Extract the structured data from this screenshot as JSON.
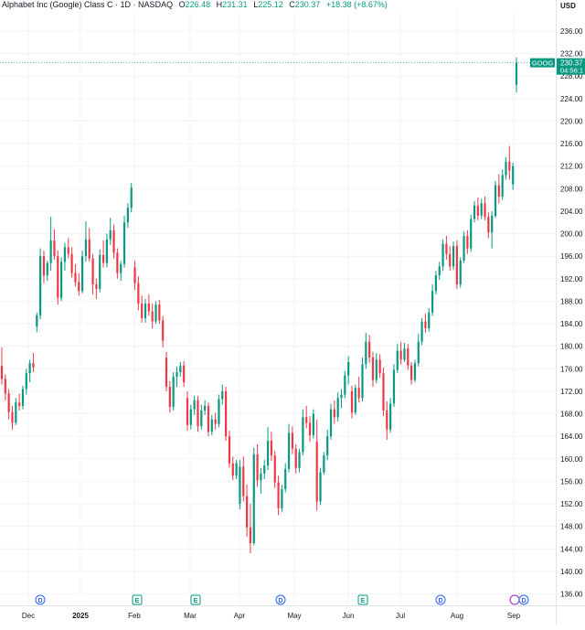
{
  "header": {
    "title": "Alphabet Inc (Google) Class C · 1D · NASDAQ",
    "o_label": "O",
    "o_value": "226.48",
    "h_label": "H",
    "h_value": "231.31",
    "l_label": "L",
    "l_value": "225.12",
    "c_label": "C",
    "c_value": "230.37",
    "change": "+18.38 (+8.67%)"
  },
  "price_axis": {
    "currency": "USD",
    "ticks": [
      "236.00",
      "232.00",
      "228.00",
      "224.00",
      "220.00",
      "216.00",
      "212.00",
      "208.00",
      "204.00",
      "200.00",
      "196.00",
      "192.00",
      "188.00",
      "184.00",
      "180.00",
      "176.00",
      "172.00",
      "168.00",
      "164.00",
      "160.00",
      "156.00",
      "152.00",
      "148.00",
      "144.00",
      "140.00",
      "136.00"
    ]
  },
  "last_price_label": {
    "symbol": "GOOG",
    "price": "230.37",
    "countdown": "04:56:1"
  },
  "time_axis": {
    "labels": [
      "Dec",
      "2025",
      "Feb",
      "Mar",
      "Apr",
      "May",
      "Jun",
      "Jul",
      "Aug",
      "Sep"
    ]
  },
  "event_markers": [
    {
      "letter": "D",
      "type": "dividend"
    },
    {
      "letter": "E",
      "type": "earnings"
    },
    {
      "letter": "E",
      "type": "earnings"
    },
    {
      "letter": "D",
      "type": "dividend"
    },
    {
      "letter": "E",
      "type": "earnings"
    },
    {
      "letter": "D",
      "type": "dividend"
    }
  ],
  "colors": {
    "up": "#089981",
    "down": "#f23645",
    "grid": "#f0f3fa",
    "axis_text": "#131722",
    "event": "#2962ff"
  },
  "chart_data": {
    "type": "candlestick",
    "title": "Alphabet Inc (Google) Class C · 1D · NASDAQ",
    "xlabel": "",
    "ylabel": "",
    "ylim": [
      134,
      238
    ],
    "x_ticks": [
      "Dec",
      "2025",
      "Feb",
      "Mar",
      "Apr",
      "May",
      "Jun",
      "Jul",
      "Aug",
      "Sep"
    ],
    "y_ticks": [
      236,
      232,
      228,
      224,
      220,
      216,
      212,
      208,
      204,
      200,
      196,
      192,
      188,
      184,
      180,
      176,
      172,
      168,
      164,
      160,
      156,
      152,
      148,
      144,
      140,
      136
    ],
    "candles": [
      [
        176.5,
        179.8,
        173.2,
        174.2
      ],
      [
        174.2,
        175.0,
        170.4,
        171.6
      ],
      [
        171.6,
        172.4,
        167.0,
        168.3
      ],
      [
        168.3,
        169.4,
        165.2,
        166.4
      ],
      [
        166.4,
        170.8,
        166.0,
        170.0
      ],
      [
        170.0,
        171.6,
        168.6,
        169.4
      ],
      [
        169.4,
        173.0,
        168.8,
        172.4
      ],
      [
        172.4,
        176.0,
        171.4,
        175.2
      ],
      [
        175.2,
        177.6,
        173.6,
        177.0
      ],
      [
        177.0,
        178.8,
        175.4,
        176.2
      ],
      [
        183.5,
        186.0,
        182.5,
        185.5
      ],
      [
        185.5,
        197.4,
        184.8,
        196.0
      ],
      [
        196.0,
        197.0,
        191.2,
        192.6
      ],
      [
        192.6,
        195.2,
        191.6,
        194.8
      ],
      [
        194.8,
        203.0,
        193.4,
        198.8
      ],
      [
        198.8,
        200.8,
        195.4,
        196.0
      ],
      [
        196.0,
        197.0,
        187.4,
        188.6
      ],
      [
        188.6,
        195.8,
        188.0,
        195.0
      ],
      [
        195.0,
        198.4,
        193.4,
        197.6
      ],
      [
        197.6,
        199.2,
        195.6,
        196.4
      ],
      [
        196.4,
        197.6,
        192.2,
        193.0
      ],
      [
        193.0,
        194.6,
        190.6,
        191.4
      ],
      [
        191.4,
        193.0,
        189.0,
        189.8
      ],
      [
        189.8,
        197.0,
        189.4,
        196.0
      ],
      [
        196.0,
        202.2,
        195.0,
        199.0
      ],
      [
        199.0,
        201.0,
        195.0,
        195.6
      ],
      [
        195.6,
        196.4,
        189.2,
        191.0
      ],
      [
        191.0,
        192.0,
        188.4,
        190.2
      ],
      [
        190.2,
        197.2,
        189.6,
        196.2
      ],
      [
        196.2,
        198.8,
        194.0,
        194.8
      ],
      [
        194.8,
        200.0,
        194.0,
        199.0
      ],
      [
        199.0,
        202.8,
        198.0,
        200.6
      ],
      [
        200.6,
        201.6,
        195.6,
        196.6
      ],
      [
        196.6,
        197.4,
        192.0,
        193.0
      ],
      [
        193.0,
        195.2,
        191.6,
        194.6
      ],
      [
        194.6,
        203.2,
        194.0,
        202.0
      ],
      [
        202.0,
        205.4,
        201.0,
        204.6
      ],
      [
        204.6,
        209.0,
        203.8,
        208.2
      ],
      [
        194.0,
        195.2,
        190.0,
        191.2
      ],
      [
        191.2,
        192.4,
        186.4,
        187.6
      ],
      [
        187.6,
        189.0,
        184.2,
        185.0
      ],
      [
        185.0,
        188.4,
        184.2,
        187.6
      ],
      [
        187.6,
        189.2,
        185.4,
        186.2
      ],
      [
        186.2,
        187.6,
        183.2,
        184.4
      ],
      [
        184.4,
        188.0,
        184.0,
        187.4
      ],
      [
        187.4,
        188.2,
        184.0,
        184.6
      ],
      [
        184.6,
        185.4,
        179.8,
        181.0
      ],
      [
        178.0,
        179.0,
        172.0,
        172.8
      ],
      [
        172.8,
        173.8,
        168.2,
        169.2
      ],
      [
        169.2,
        175.4,
        168.6,
        174.6
      ],
      [
        174.6,
        176.4,
        172.8,
        175.4
      ],
      [
        175.4,
        177.2,
        174.6,
        176.6
      ],
      [
        176.6,
        177.4,
        172.8,
        173.6
      ],
      [
        170.8,
        172.0,
        165.0,
        166.0
      ],
      [
        166.0,
        169.6,
        165.2,
        168.8
      ],
      [
        168.8,
        171.2,
        167.8,
        170.4
      ],
      [
        170.4,
        171.2,
        164.8,
        165.8
      ],
      [
        165.8,
        169.6,
        165.2,
        168.6
      ],
      [
        168.6,
        170.4,
        167.8,
        169.4
      ],
      [
        169.4,
        170.0,
        164.0,
        164.8
      ],
      [
        164.8,
        167.8,
        164.2,
        167.0
      ],
      [
        167.0,
        168.2,
        165.2,
        166.2
      ],
      [
        166.2,
        171.4,
        165.6,
        170.6
      ],
      [
        170.6,
        173.2,
        169.6,
        172.0
      ],
      [
        172.0,
        172.8,
        163.2,
        164.0
      ],
      [
        164.0,
        165.0,
        158.4,
        159.2
      ],
      [
        159.2,
        160.4,
        156.2,
        157.0
      ],
      [
        157.0,
        159.8,
        156.4,
        159.2
      ],
      [
        152.0,
        159.8,
        151.0,
        158.6
      ],
      [
        158.6,
        160.4,
        152.4,
        153.4
      ],
      [
        153.4,
        155.4,
        146.2,
        147.8
      ],
      [
        147.8,
        152.0,
        143.2,
        145.0
      ],
      [
        145.0,
        162.0,
        144.6,
        160.8
      ],
      [
        160.8,
        162.6,
        155.0,
        156.2
      ],
      [
        156.2,
        158.4,
        153.8,
        157.4
      ],
      [
        157.4,
        159.8,
        156.4,
        158.8
      ],
      [
        158.8,
        165.6,
        158.0,
        163.2
      ],
      [
        163.2,
        164.8,
        159.6,
        160.6
      ],
      [
        160.6,
        161.4,
        154.8,
        155.8
      ],
      [
        155.8,
        157.0,
        150.0,
        151.2
      ],
      [
        151.2,
        155.4,
        150.6,
        154.6
      ],
      [
        154.6,
        159.2,
        154.0,
        158.2
      ],
      [
        158.2,
        166.2,
        157.6,
        164.6
      ],
      [
        164.6,
        165.8,
        160.8,
        161.8
      ],
      [
        161.8,
        162.6,
        157.4,
        158.4
      ],
      [
        158.4,
        161.8,
        157.6,
        161.2
      ],
      [
        161.2,
        168.8,
        160.6,
        167.4
      ],
      [
        167.4,
        169.4,
        165.4,
        166.4
      ],
      [
        166.4,
        167.6,
        163.0,
        164.2
      ],
      [
        164.2,
        168.8,
        163.6,
        168.0
      ],
      [
        163.0,
        167.0,
        150.8,
        152.4
      ],
      [
        152.4,
        158.4,
        151.8,
        157.6
      ],
      [
        157.6,
        161.2,
        157.2,
        160.6
      ],
      [
        160.6,
        165.2,
        159.8,
        164.0
      ],
      [
        164.0,
        169.8,
        163.4,
        168.8
      ],
      [
        168.8,
        170.4,
        166.2,
        167.4
      ],
      [
        167.4,
        171.8,
        166.6,
        170.8
      ],
      [
        170.8,
        172.4,
        169.0,
        171.4
      ],
      [
        171.4,
        175.6,
        170.8,
        174.8
      ],
      [
        174.8,
        178.2,
        173.2,
        177.2
      ],
      [
        172.0,
        173.0,
        167.2,
        168.2
      ],
      [
        168.2,
        173.2,
        167.8,
        172.6
      ],
      [
        172.6,
        174.6,
        170.0,
        170.8
      ],
      [
        170.8,
        178.0,
        170.2,
        176.8
      ],
      [
        176.8,
        182.4,
        176.0,
        180.8
      ],
      [
        180.8,
        182.0,
        177.0,
        178.0
      ],
      [
        178.0,
        179.0,
        172.8,
        174.0
      ],
      [
        174.0,
        178.8,
        173.4,
        177.6
      ],
      [
        177.6,
        178.6,
        174.4,
        175.2
      ],
      [
        175.2,
        176.2,
        167.6,
        168.6
      ],
      [
        168.6,
        170.2,
        163.4,
        165.2
      ],
      [
        165.2,
        170.8,
        164.6,
        169.8
      ],
      [
        169.8,
        176.8,
        169.2,
        175.8
      ],
      [
        175.8,
        180.4,
        175.2,
        179.2
      ],
      [
        179.2,
        180.8,
        176.8,
        177.6
      ],
      [
        177.6,
        180.6,
        177.2,
        179.6
      ],
      [
        179.6,
        180.4,
        175.8,
        176.6
      ],
      [
        176.6,
        177.2,
        173.2,
        174.0
      ],
      [
        174.0,
        177.6,
        173.6,
        177.0
      ],
      [
        177.0,
        182.2,
        176.4,
        180.8
      ],
      [
        180.8,
        185.0,
        180.2,
        184.4
      ],
      [
        184.4,
        185.8,
        182.4,
        183.2
      ],
      [
        183.2,
        186.8,
        182.6,
        186.0
      ],
      [
        186.0,
        191.0,
        185.4,
        189.8
      ],
      [
        189.8,
        193.4,
        189.2,
        192.6
      ],
      [
        192.6,
        195.0,
        191.8,
        194.2
      ],
      [
        194.2,
        199.0,
        193.4,
        198.2
      ],
      [
        198.2,
        199.6,
        195.4,
        196.4
      ],
      [
        196.4,
        197.8,
        193.4,
        194.2
      ],
      [
        194.2,
        198.6,
        193.6,
        197.8
      ],
      [
        197.8,
        198.8,
        190.2,
        191.0
      ],
      [
        191.0,
        195.8,
        190.4,
        195.2
      ],
      [
        195.2,
        200.4,
        194.8,
        199.6
      ],
      [
        199.6,
        200.6,
        196.4,
        197.4
      ],
      [
        197.4,
        203.4,
        196.8,
        202.6
      ],
      [
        202.6,
        205.8,
        202.0,
        205.0
      ],
      [
        205.0,
        206.4,
        202.4,
        203.2
      ],
      [
        203.2,
        206.2,
        202.6,
        205.4
      ],
      [
        205.4,
        206.6,
        202.4,
        203.0
      ],
      [
        203.0,
        203.8,
        199.2,
        200.2
      ],
      [
        200.2,
        204.0,
        197.4,
        203.2
      ],
      [
        203.2,
        209.4,
        202.8,
        208.6
      ],
      [
        208.6,
        210.6,
        205.4,
        206.6
      ],
      [
        206.6,
        211.4,
        206.0,
        210.4
      ],
      [
        210.4,
        213.6,
        209.6,
        212.8
      ],
      [
        212.8,
        215.6,
        209.6,
        211.2
      ],
      [
        208.8,
        212.6,
        207.8,
        212.0
      ],
      [
        226.48,
        231.31,
        225.12,
        230.37
      ]
    ],
    "last_price": 230.37
  }
}
